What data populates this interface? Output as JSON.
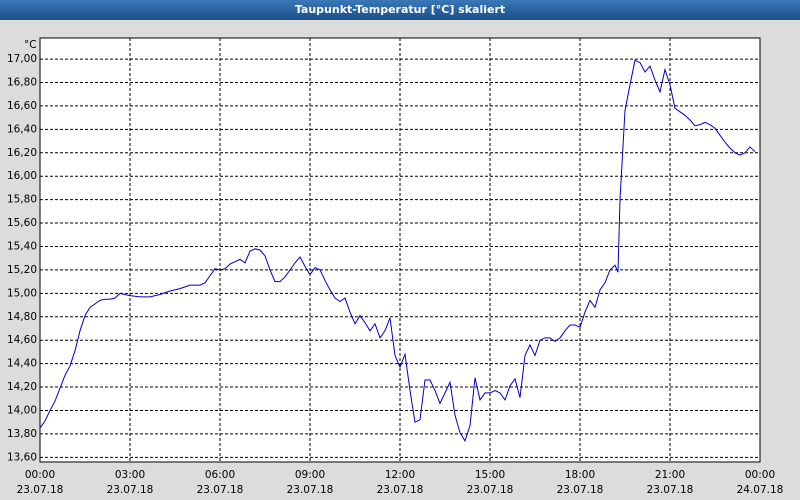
{
  "chart_data": {
    "type": "line",
    "title": "Taupunkt-Temperatur [°C] skaliert",
    "y_unit": "°C",
    "color": "#0000c8",
    "grid": true,
    "xlim": [
      0,
      1440
    ],
    "ylim": [
      13.56,
      17.18
    ],
    "xticks": [
      {
        "value": 0,
        "label": "00:00"
      },
      {
        "value": 180,
        "label": "03:00"
      },
      {
        "value": 360,
        "label": "06:00"
      },
      {
        "value": 540,
        "label": "09:00"
      },
      {
        "value": 720,
        "label": "12:00"
      },
      {
        "value": 900,
        "label": "15:00"
      },
      {
        "value": 1080,
        "label": "18:00"
      },
      {
        "value": 1260,
        "label": "21:00"
      },
      {
        "value": 1440,
        "label": "00:00"
      }
    ],
    "xtick_dates": [
      "23.07.18",
      "23.07.18",
      "23.07.18",
      "23.07.18",
      "23.07.18",
      "23.07.18",
      "23.07.18",
      "23.07.18",
      "24.07.18"
    ],
    "yticks": [
      {
        "value": 13.6,
        "label": "13,60"
      },
      {
        "value": 13.8,
        "label": "13,80"
      },
      {
        "value": 14.0,
        "label": "14,00"
      },
      {
        "value": 14.2,
        "label": "14,20"
      },
      {
        "value": 14.4,
        "label": "14,40"
      },
      {
        "value": 14.6,
        "label": "14,60"
      },
      {
        "value": 14.8,
        "label": "14,80"
      },
      {
        "value": 15.0,
        "label": "15,00"
      },
      {
        "value": 15.2,
        "label": "15,20"
      },
      {
        "value": 15.4,
        "label": "15,40"
      },
      {
        "value": 15.6,
        "label": "15,60"
      },
      {
        "value": 15.8,
        "label": "15,80"
      },
      {
        "value": 16.0,
        "label": "16,00"
      },
      {
        "value": 16.2,
        "label": "16,20"
      },
      {
        "value": 16.4,
        "label": "16,40"
      },
      {
        "value": 16.6,
        "label": "16,60"
      },
      {
        "value": 16.8,
        "label": "16,80"
      },
      {
        "value": 17.0,
        "label": "17,00"
      }
    ],
    "x": [
      0,
      10,
      20,
      30,
      40,
      50,
      60,
      70,
      80,
      90,
      100,
      110,
      120,
      130,
      140,
      150,
      160,
      180,
      200,
      220,
      240,
      260,
      280,
      300,
      320,
      330,
      340,
      350,
      360,
      370,
      380,
      390,
      400,
      410,
      420,
      430,
      440,
      450,
      460,
      470,
      480,
      490,
      500,
      510,
      520,
      530,
      540,
      550,
      560,
      570,
      580,
      590,
      600,
      610,
      620,
      630,
      640,
      650,
      660,
      670,
      680,
      690,
      700,
      710,
      720,
      730,
      740,
      750,
      760,
      770,
      780,
      790,
      800,
      810,
      820,
      830,
      840,
      850,
      860,
      870,
      880,
      890,
      900,
      910,
      920,
      930,
      940,
      950,
      960,
      970,
      980,
      990,
      1000,
      1010,
      1020,
      1030,
      1040,
      1050,
      1060,
      1070,
      1080,
      1090,
      1100,
      1110,
      1120,
      1130,
      1140,
      1150,
      1156,
      1160,
      1170,
      1180,
      1190,
      1200,
      1210,
      1220,
      1230,
      1240,
      1250,
      1260,
      1270,
      1280,
      1290,
      1300,
      1310,
      1320,
      1330,
      1340,
      1350,
      1360,
      1370,
      1380,
      1390,
      1400,
      1410,
      1420,
      1430
    ],
    "values": [
      13.85,
      13.91,
      14.0,
      14.08,
      14.19,
      14.3,
      14.38,
      14.51,
      14.68,
      14.81,
      14.88,
      14.91,
      14.94,
      14.95,
      14.95,
      14.96,
      15.0,
      14.98,
      14.97,
      14.97,
      14.99,
      15.02,
      15.04,
      15.07,
      15.07,
      15.09,
      15.15,
      15.21,
      15.2,
      15.21,
      15.25,
      15.27,
      15.29,
      15.26,
      15.36,
      15.38,
      15.37,
      15.32,
      15.2,
      15.1,
      15.1,
      15.14,
      15.2,
      15.26,
      15.31,
      15.23,
      15.16,
      15.22,
      15.2,
      15.11,
      15.03,
      14.96,
      14.93,
      14.96,
      14.84,
      14.74,
      14.81,
      14.75,
      14.68,
      14.74,
      14.62,
      14.68,
      14.79,
      14.47,
      14.37,
      14.48,
      14.17,
      13.9,
      13.92,
      14.26,
      14.26,
      14.17,
      14.06,
      14.15,
      14.24,
      13.96,
      13.81,
      13.74,
      13.87,
      14.28,
      14.09,
      14.15,
      14.15,
      14.17,
      14.15,
      14.09,
      14.21,
      14.27,
      14.11,
      14.47,
      14.56,
      14.47,
      14.6,
      14.62,
      14.62,
      14.59,
      14.62,
      14.68,
      14.73,
      14.73,
      14.71,
      14.84,
      14.94,
      14.88,
      15.03,
      15.09,
      15.2,
      15.24,
      15.18,
      15.8,
      16.56,
      16.78,
      16.99,
      16.97,
      16.89,
      16.94,
      16.82,
      16.72,
      16.91,
      16.78,
      16.58,
      16.55,
      16.52,
      16.48,
      16.43,
      16.44,
      16.46,
      16.44,
      16.41,
      16.35,
      16.29,
      16.24,
      16.2,
      16.18,
      16.2,
      16.25,
      16.21
    ]
  }
}
